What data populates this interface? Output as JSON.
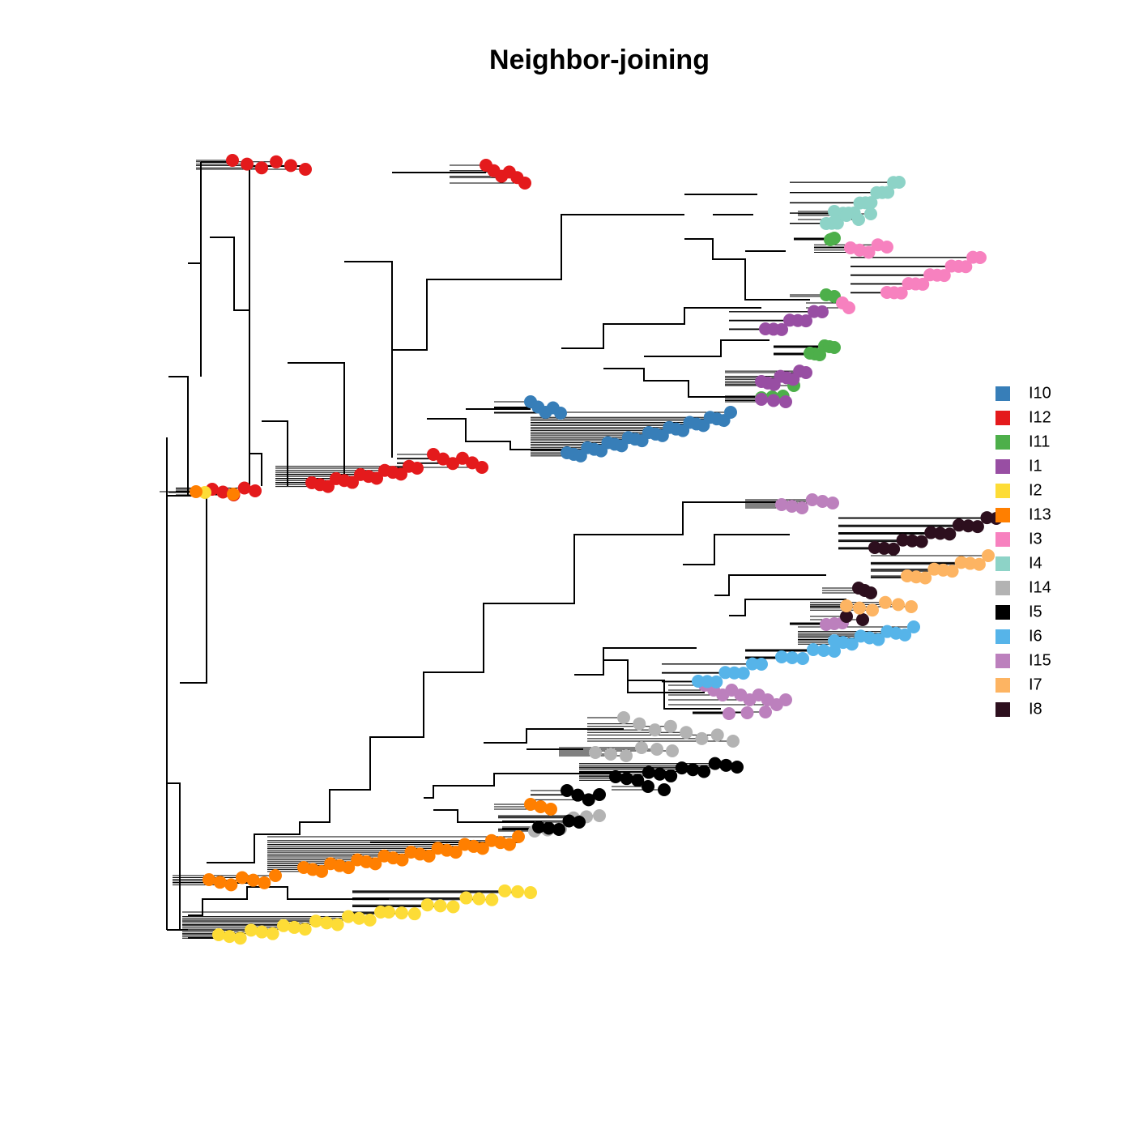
{
  "title": "Neighbor-joining",
  "legend": [
    {
      "name": "I10",
      "color": "#377eb8"
    },
    {
      "name": "I12",
      "color": "#e41a1c"
    },
    {
      "name": "I11",
      "color": "#4daf4a"
    },
    {
      "name": "I1",
      "color": "#984ea3"
    },
    {
      "name": "I2",
      "color": "#fddc36"
    },
    {
      "name": "I13",
      "color": "#ff7f00"
    },
    {
      "name": "I3",
      "color": "#f781bf"
    },
    {
      "name": "I4",
      "color": "#8dd3c7"
    },
    {
      "name": "I14",
      "color": "#b3b3b3"
    },
    {
      "name": "I5",
      "color": "#000000"
    },
    {
      "name": "I6",
      "color": "#56b4e9"
    },
    {
      "name": "I15",
      "color": "#bc80bd"
    },
    {
      "name": "I7",
      "color": "#fdb462"
    },
    {
      "name": "I8",
      "color": "#2d0f1e"
    }
  ]
}
